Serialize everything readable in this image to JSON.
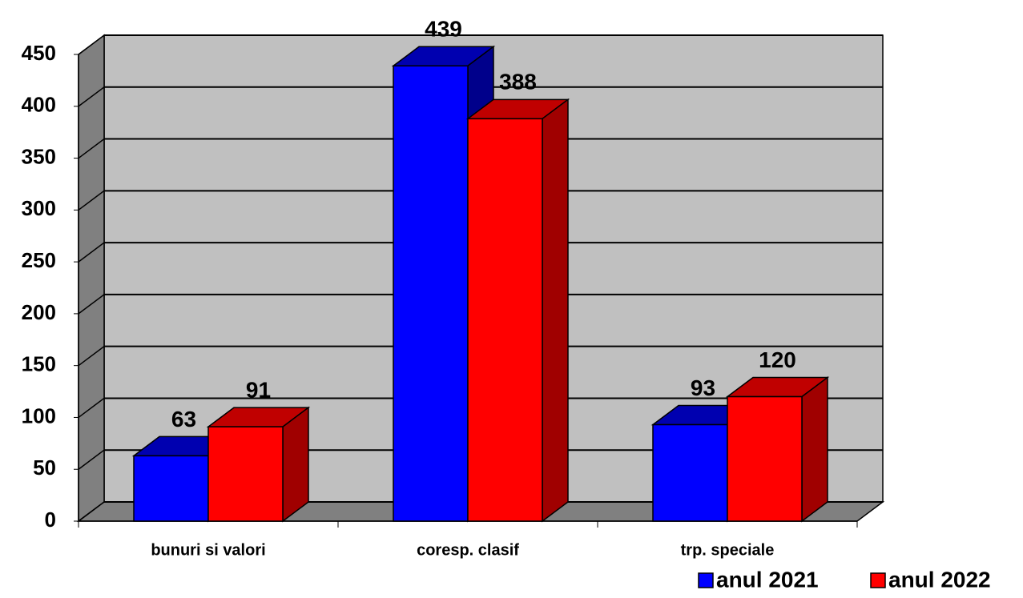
{
  "chart_data": {
    "type": "bar3d",
    "categories": [
      "bunuri si valori",
      "coresp. clasif",
      "trp. speciale"
    ],
    "series": [
      {
        "name": "anul 2021",
        "color": "#0000ff",
        "values": [
          63,
          439,
          93
        ]
      },
      {
        "name": "anul 2022",
        "color": "#ff0000",
        "values": [
          91,
          388,
          120
        ]
      }
    ],
    "ylim": [
      0,
      450
    ],
    "yticks": [
      0,
      50,
      100,
      150,
      200,
      250,
      300,
      350,
      400,
      450
    ],
    "grid": true,
    "legend": "bottom-right"
  }
}
